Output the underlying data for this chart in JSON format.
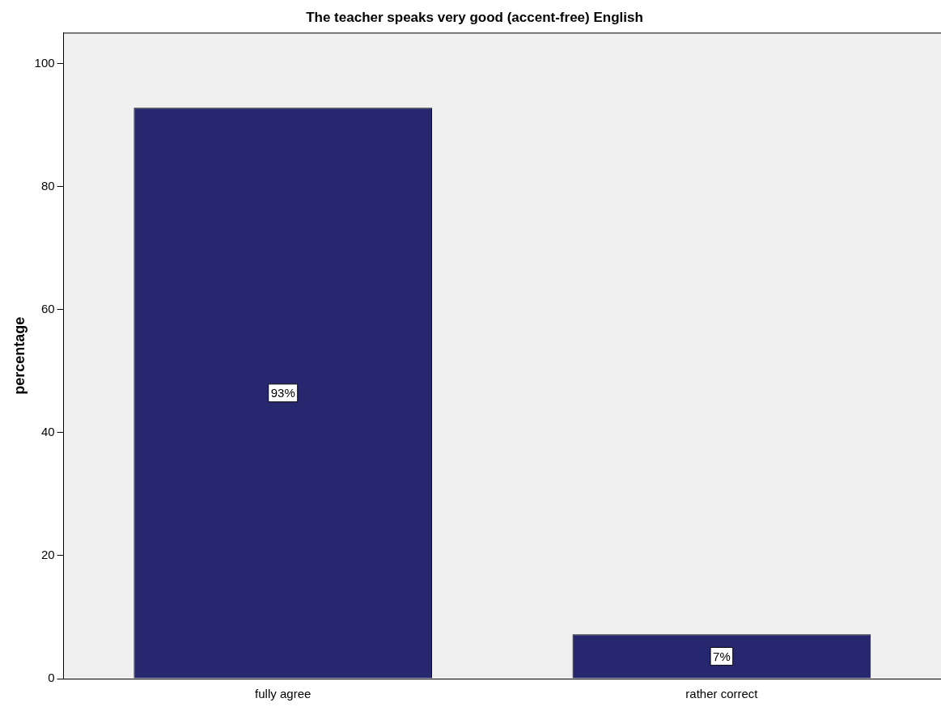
{
  "chart_data": {
    "type": "bar",
    "title": "The teacher speaks very good (accent-free) English",
    "ylabel": "percentage",
    "categories": [
      "fully agree",
      "rather correct"
    ],
    "values": [
      92.8,
      7.2
    ],
    "color": "#26276e",
    "value_labels": [
      "93%",
      "7%"
    ],
    "ylim": [
      0,
      105
    ],
    "yticks": [
      0,
      20,
      40,
      60,
      80,
      100
    ],
    "grid": false,
    "legend": false
  }
}
